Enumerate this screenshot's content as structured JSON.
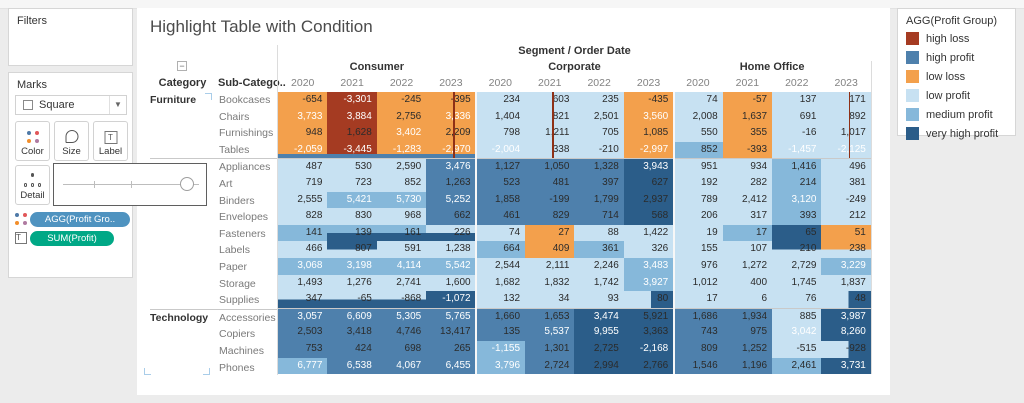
{
  "filters_panel": {
    "title": "Filters"
  },
  "marks_panel": {
    "title": "Marks",
    "mark_type": "Square",
    "buttons": [
      "Color",
      "Size",
      "Label"
    ],
    "detail_label": "Detail",
    "pills": [
      {
        "label": "AGG(Profit Gro..",
        "color": "#4f93c0",
        "icon": "color-dots-icon"
      },
      {
        "label": "SUM(Profit)",
        "color": "#00a886",
        "icon": "text-label-icon"
      }
    ]
  },
  "legend": {
    "title": "AGG(Profit Group)",
    "items": [
      {
        "label": "high loss",
        "color": "#a53b22"
      },
      {
        "label": "high profit",
        "color": "#4e80ac"
      },
      {
        "label": "low loss",
        "color": "#f3a04c"
      },
      {
        "label": "low profit",
        "color": "#c7e1f2"
      },
      {
        "label": "medium profit",
        "color": "#86b8da"
      },
      {
        "label": "very high profit",
        "color": "#2b5d89"
      }
    ]
  },
  "chart_data": {
    "type": "heatmap",
    "title": "Highlight Table with Condition",
    "column_dimension": "Segment / Order Date",
    "segments": [
      "Consumer",
      "Corporate",
      "Home Office"
    ],
    "years": [
      "2020",
      "2021",
      "2022",
      "2023"
    ],
    "row_headers": {
      "category": "Category",
      "subcategory": "Sub-Catego.."
    },
    "collapse_glyph": "−",
    "palette": {
      "hl": "#a53b22",
      "hp": "#4e80ac",
      "lo": "#f3a04c",
      "lp": "#c7e1f2",
      "mp": "#86b8da",
      "vh": "#2b5d89"
    },
    "text_colors": {
      "d": "#2b2b2b",
      "w": "#ffffff"
    },
    "rows": [
      {
        "cat": "Furniture",
        "sub": "Bookcases",
        "v": [
          "-654",
          "-3,301",
          "-245",
          "-395",
          "234",
          "603",
          "235",
          "-435",
          "74",
          "-57",
          "137",
          "171"
        ],
        "c": [
          "lo",
          "hl",
          "lo",
          "lo",
          "lp",
          "lp",
          "lp",
          "lo",
          "lp",
          "lo",
          "lp",
          "lp"
        ],
        "t": "dwdddddddddd"
      },
      {
        "cat": "",
        "sub": "Chairs",
        "v": [
          "3,733",
          "3,884",
          "2,756",
          "3,336",
          "1,404",
          "821",
          "2,501",
          "3,560",
          "2,008",
          "1,637",
          "691",
          "892"
        ],
        "c": [
          "lo",
          "hl",
          "lo",
          "lo",
          "lp",
          "lp",
          "lp",
          "lo",
          "lp",
          "lo",
          "lp",
          "lp"
        ],
        "t": "wwdwdddwdddd"
      },
      {
        "cat": "",
        "sub": "Furnishings",
        "v": [
          "948",
          "1,628",
          "3,402",
          "2,209",
          "798",
          "1,211",
          "705",
          "1,085",
          "550",
          "355",
          "-16",
          "1,017"
        ],
        "c": [
          "lo",
          "hl",
          "lo",
          "lo",
          "lp",
          "lp",
          "lp",
          "lo",
          "lp",
          "lo",
          "lp",
          "lp"
        ],
        "t": "ddwddddddddd"
      },
      {
        "cat": "",
        "sub": "Tables",
        "v": [
          "-2,059",
          "-3,445",
          "-1,283",
          "-2,970",
          "-2,004",
          "338",
          "-210",
          "-2,997",
          "852",
          "-393",
          "-1,457",
          "-2,125"
        ],
        "c": [
          "lo",
          "hl",
          "lo",
          "lo",
          "lp",
          "lp",
          "lp",
          "lo",
          "mp",
          "lo",
          "lp",
          "lp"
        ],
        "t": "wwwwwddwddww"
      },
      {
        "cat": "",
        "sub": "Appliances",
        "sec": true,
        "v": [
          "487",
          "530",
          "2,590",
          "3,476",
          "1,127",
          "1,050",
          "1,328",
          "3,943",
          "951",
          "934",
          "1,416",
          "496"
        ],
        "c": [
          "lp",
          "lp",
          "lp",
          "hp",
          "hp",
          "hp",
          "hp",
          "vh",
          "lp",
          "lp",
          "mp",
          "lp"
        ],
        "t": "dddwdddwdddd"
      },
      {
        "cat": "",
        "sub": "Art",
        "v": [
          "719",
          "723",
          "852",
          "1,263",
          "523",
          "481",
          "397",
          "627",
          "192",
          "282",
          "214",
          "381"
        ],
        "c": [
          "lp",
          "lp",
          "lp",
          "hp",
          "hp",
          "hp",
          "hp",
          "vh",
          "lp",
          "lp",
          "mp",
          "lp"
        ],
        "t": "dddddddddddd"
      },
      {
        "cat": "",
        "sub": "Binders",
        "v": [
          "2,555",
          "5,421",
          "5,730",
          "5,252",
          "1,858",
          "-199",
          "1,799",
          "2,937",
          "789",
          "2,412",
          "3,120",
          "-249"
        ],
        "c": [
          "lp",
          "mp",
          "mp",
          "hp",
          "hp",
          "hp",
          "hp",
          "vh",
          "lp",
          "lp",
          "mp",
          "lp"
        ],
        "t": "dwwwddddddwd"
      },
      {
        "cat": "",
        "sub": "Envelopes",
        "v": [
          "828",
          "830",
          "968",
          "662",
          "461",
          "829",
          "714",
          "568",
          "206",
          "317",
          "393",
          "212"
        ],
        "c": [
          "lp",
          "lp",
          "lp",
          "hp",
          "hp",
          "hp",
          "hp",
          "vh",
          "lp",
          "lp",
          "mp",
          "lp"
        ],
        "t": "dddddddddddd"
      },
      {
        "cat": "",
        "sub": "Fasteners",
        "v": [
          "141",
          "139",
          "161",
          "226",
          "74",
          "27",
          "88",
          "1,422",
          "19",
          "17",
          "65",
          "51"
        ],
        "c": [
          "mp",
          "mp/vh",
          "mp/vh",
          "lp/vh",
          "lp",
          "lo",
          "lp",
          "lp",
          "lp",
          "mp",
          "vh",
          "lo"
        ],
        "t": "dddddddddddd"
      },
      {
        "cat": "",
        "sub": "Labels",
        "v": [
          "466",
          "807",
          "591",
          "1,238",
          "664",
          "409",
          "361",
          "326",
          "155",
          "107",
          "210",
          "238"
        ],
        "c": [
          "lp",
          "vh/lp",
          "lp",
          "lp",
          "mp",
          "lo",
          "mp",
          "lp",
          "lp",
          "lp",
          "vh/lp",
          "lo/lp"
        ],
        "t": "dddddddddddd"
      },
      {
        "cat": "",
        "sub": "Paper",
        "v": [
          "3,068",
          "3,198",
          "4,114",
          "5,542",
          "2,544",
          "2,111",
          "2,246",
          "3,483",
          "976",
          "1,272",
          "2,729",
          "3,229"
        ],
        "c": [
          "mp",
          "mp",
          "mp",
          "mp",
          "lp",
          "lp",
          "lp",
          "mp",
          "lp",
          "lp",
          "lp",
          "mp"
        ],
        "t": "wwwwdddwdddw"
      },
      {
        "cat": "",
        "sub": "Storage",
        "v": [
          "1,493",
          "1,276",
          "2,741",
          "1,600",
          "1,682",
          "1,832",
          "1,742",
          "3,927",
          "1,012",
          "400",
          "1,745",
          "1,837"
        ],
        "c": [
          "lp",
          "lp",
          "lp",
          "lp",
          "lp",
          "lp",
          "lp",
          "mp",
          "lp",
          "lp",
          "lp",
          "lp"
        ],
        "t": "dddddddwdddd"
      },
      {
        "cat": "",
        "sub": "Supplies",
        "v": [
          "347",
          "-65",
          "-868",
          "-1,072",
          "132",
          "34",
          "93",
          "80",
          "17",
          "6",
          "76",
          "48"
        ],
        "c": [
          "lp/vh",
          "lp/vh",
          "lp/vh",
          "vh",
          "lp",
          "lp",
          "lp",
          "lp|vh",
          "lp",
          "lp",
          "lp",
          "lp|vh"
        ],
        "t": "dddwdddddddd"
      },
      {
        "cat": "Technology",
        "sub": "Accessories",
        "sec": true,
        "v": [
          "3,057",
          "6,609",
          "5,305",
          "5,765",
          "1,660",
          "1,653",
          "3,474",
          "5,921",
          "1,686",
          "1,934",
          "885",
          "3,987"
        ],
        "c": [
          "hp",
          "hp",
          "hp",
          "hp",
          "hp",
          "hp",
          "vh",
          "vh",
          "hp",
          "hp",
          "lp",
          "vh"
        ],
        "t": "wwwwddwddddw"
      },
      {
        "cat": "",
        "sub": "Copiers",
        "v": [
          "2,503",
          "3,418",
          "4,746",
          "13,417",
          "135",
          "5,537",
          "9,955",
          "3,363",
          "743",
          "975",
          "3,042",
          "8,260"
        ],
        "c": [
          "hp",
          "hp",
          "hp",
          "hp",
          "hp",
          "hp",
          "vh",
          "vh",
          "hp",
          "hp",
          "lp",
          "vh"
        ],
        "t": "dddddwwdddww"
      },
      {
        "cat": "",
        "sub": "Machines",
        "v": [
          "753",
          "424",
          "698",
          "265",
          "-1,155",
          "1,301",
          "2,725",
          "-2,168",
          "809",
          "1,252",
          "-515",
          "-928"
        ],
        "c": [
          "hp",
          "hp",
          "hp",
          "hp",
          "mp",
          "hp",
          "vh",
          "vh",
          "hp",
          "hp",
          "lp",
          "lp|vh"
        ],
        "t": "ddddwddwdddd"
      },
      {
        "cat": "",
        "sub": "Phones",
        "v": [
          "6,777",
          "6,538",
          "4,067",
          "6,455",
          "3,796",
          "2,724",
          "2,994",
          "2,766",
          "1,546",
          "1,196",
          "2,461",
          "3,731"
        ],
        "c": [
          "mp",
          "hp",
          "hp",
          "hp",
          "mp",
          "hp",
          "vh",
          "vh",
          "hp",
          "hp",
          "mp",
          "vh"
        ],
        "t": "wwwwwddddddw"
      }
    ],
    "red_tick_cells": [
      [
        0,
        3
      ],
      [
        1,
        3
      ],
      [
        2,
        3
      ],
      [
        3,
        3
      ],
      [
        0,
        5
      ],
      [
        1,
        5
      ],
      [
        2,
        5
      ],
      [
        3,
        5
      ],
      [
        0,
        11
      ],
      [
        1,
        11
      ],
      [
        2,
        11
      ],
      [
        3,
        11
      ]
    ],
    "bottom_strip_cells": [
      [
        3,
        0
      ],
      [
        3,
        1
      ],
      [
        3,
        2
      ],
      [
        3,
        3
      ]
    ],
    "bottom_strip_color": "#4e80ac"
  }
}
